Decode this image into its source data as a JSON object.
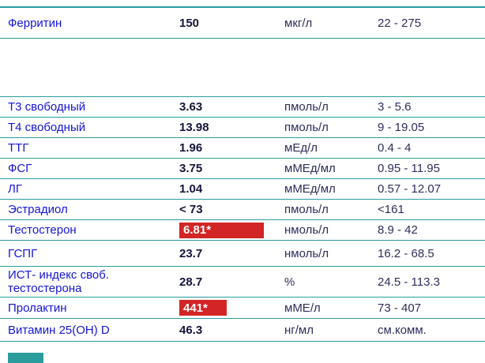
{
  "report": {
    "columns": [
      "name",
      "value",
      "unit",
      "range"
    ],
    "rows": [
      {
        "name": "Ферритин",
        "value": "150",
        "unit": "мкг/л",
        "range": "22 - 275",
        "flagged": false
      },
      {
        "name": "Т3 свободный",
        "value": "3.63",
        "unit": "пмоль/л",
        "range": "3 - 5.6",
        "flagged": false
      },
      {
        "name": "Т4 свободный",
        "value": "13.98",
        "unit": "пмоль/л",
        "range": "9 - 19.05",
        "flagged": false
      },
      {
        "name": "ТТГ",
        "value": "1.96",
        "unit": "мЕд/л",
        "range": "0.4 - 4",
        "flagged": false
      },
      {
        "name": "ФСГ",
        "value": "3.75",
        "unit": "мМЕд/мл",
        "range": "0.95 - 11.95",
        "flagged": false
      },
      {
        "name": "ЛГ",
        "value": "1.04",
        "unit": "мМЕд/мл",
        "range": "0.57 - 12.07",
        "flagged": false
      },
      {
        "name": "Эстрадиол",
        "value": "< 73",
        "unit": "пмоль/л",
        "range": "<161",
        "flagged": false
      },
      {
        "name": "Тестостерон",
        "value": "6.81*",
        "unit": "нмоль/л",
        "range": "8.9 - 42",
        "flagged": true
      },
      {
        "name": "ГСПГ",
        "value": "23.7",
        "unit": "нмоль/л",
        "range": "16.2 - 68.5",
        "flagged": false
      },
      {
        "name": "ИСТ- индекс своб. тестостерона",
        "value": "28.7",
        "unit": "%",
        "range": "24.5 - 113.3",
        "flagged": false
      },
      {
        "name": "Пролактин",
        "value": "441*",
        "unit": "мМЕ/л",
        "range": "73 - 407",
        "flagged": true
      },
      {
        "name": "Витамин 25(OH) D",
        "value": "46.3",
        "unit": "нг/мл",
        "range": "см.комм.",
        "flagged": false
      }
    ]
  },
  "colors": {
    "accent_teal": "#2a9c9c",
    "flag_red": "#d22525",
    "name_blue": "#1515d6"
  }
}
